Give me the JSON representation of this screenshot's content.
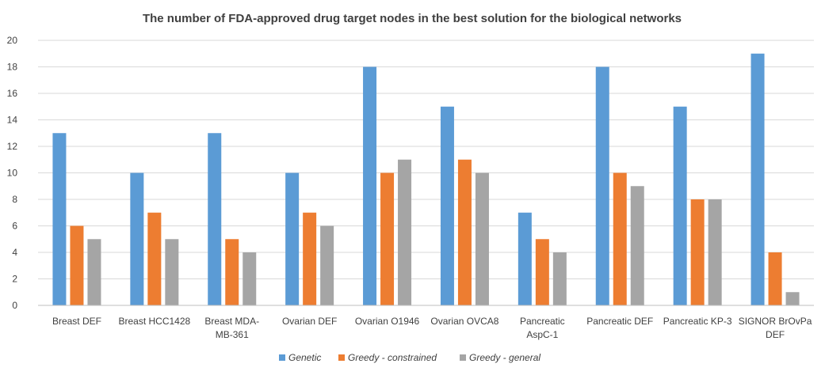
{
  "chart_data": {
    "type": "bar",
    "title": "The number of FDA-approved drug target nodes in the best solution for the biological networks",
    "xlabel": "",
    "ylabel": "",
    "ylim": [
      0,
      20
    ],
    "yticks": [
      0,
      2,
      4,
      6,
      8,
      10,
      12,
      14,
      16,
      18,
      20
    ],
    "grid": true,
    "legend_position": "bottom",
    "categories": [
      [
        "Breast DEF"
      ],
      [
        "Breast HCC1428"
      ],
      [
        "Breast MDA-",
        "MB-361"
      ],
      [
        "Ovarian DEF"
      ],
      [
        "Ovarian O1946"
      ],
      [
        "Ovarian OVCA8"
      ],
      [
        "Pancreatic",
        "AspC-1"
      ],
      [
        "Pancreatic DEF"
      ],
      [
        "Pancreatic KP-3"
      ],
      [
        "SIGNOR BrOvPa",
        "DEF"
      ]
    ],
    "series": [
      {
        "name": "Genetic",
        "color": "#5b9bd5",
        "values": [
          13,
          10,
          13,
          10,
          18,
          15,
          7,
          18,
          15,
          19
        ]
      },
      {
        "name": "Greedy - constrained",
        "color": "#ed7d31",
        "values": [
          6,
          7,
          5,
          7,
          10,
          11,
          5,
          10,
          8,
          4
        ]
      },
      {
        "name": "Greedy - general",
        "color": "#a5a5a5",
        "values": [
          5,
          5,
          4,
          6,
          11,
          10,
          4,
          9,
          8,
          1
        ]
      }
    ]
  }
}
